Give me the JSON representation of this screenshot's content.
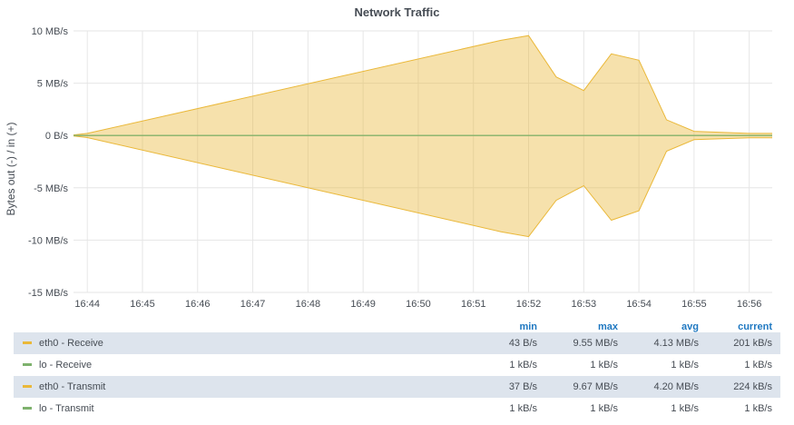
{
  "title": "Network Traffic",
  "chart_data": {
    "type": "area",
    "title": "Network Traffic",
    "ylabel": "Bytes out (-) / in (+)",
    "ylim": [
      -15,
      10
    ],
    "yticks": [
      10,
      5,
      0,
      -5,
      -10,
      -15
    ],
    "ytick_labels": [
      "10 MB/s",
      "5 MB/s",
      "0 B/s",
      "-5 MB/s",
      "-10 MB/s",
      "-15 MB/s"
    ],
    "x_ticks": [
      "16:44",
      "16:45",
      "16:46",
      "16:47",
      "16:48",
      "16:49",
      "16:50",
      "16:51",
      "16:52",
      "16:53",
      "16:54",
      "16:55",
      "16:56"
    ],
    "x": [
      "16:43:45",
      "16:44",
      "16:51:30",
      "16:52",
      "16:52:30",
      "16:53",
      "16:53:30",
      "16:54",
      "16:54:30",
      "16:55",
      "16:56",
      "16:56:25"
    ],
    "grid": true,
    "series": [
      {
        "name": "eth0 - Receive",
        "color": "#eab839",
        "values": [
          0.05,
          0.2,
          9.1,
          9.55,
          5.6,
          4.3,
          7.8,
          7.2,
          1.5,
          0.4,
          0.2,
          0.2
        ]
      },
      {
        "name": "lo - Receive",
        "color": "#7eb26d",
        "values": [
          0.001,
          0.001,
          0.001,
          0.001,
          0.001,
          0.001,
          0.001,
          0.001,
          0.001,
          0.001,
          0.001,
          0.001
        ]
      },
      {
        "name": "eth0 - Transmit",
        "color": "#eab839",
        "values": [
          -0.05,
          -0.2,
          -9.2,
          -9.67,
          -6.2,
          -4.8,
          -8.1,
          -7.2,
          -1.5,
          -0.4,
          -0.22,
          -0.22
        ]
      },
      {
        "name": "lo - Transmit",
        "color": "#7eb26d",
        "values": [
          -0.001,
          -0.001,
          -0.001,
          -0.001,
          -0.001,
          -0.001,
          -0.001,
          -0.001,
          -0.001,
          -0.001,
          -0.001,
          -0.001
        ]
      }
    ]
  },
  "legend": {
    "headers": {
      "min": "min",
      "max": "max",
      "avg": "avg",
      "current": "current"
    },
    "rows": [
      {
        "name": "eth0 - Receive",
        "color": "#eab839",
        "min": "43 B/s",
        "max": "9.55 MB/s",
        "avg": "4.13 MB/s",
        "current": "201 kB/s"
      },
      {
        "name": "lo - Receive",
        "color": "#7eb26d",
        "min": "1 kB/s",
        "max": "1 kB/s",
        "avg": "1 kB/s",
        "current": "1 kB/s"
      },
      {
        "name": "eth0 - Transmit",
        "color": "#eab839",
        "min": "37 B/s",
        "max": "9.67 MB/s",
        "avg": "4.20 MB/s",
        "current": "224 kB/s"
      },
      {
        "name": "lo - Transmit",
        "color": "#7eb26d",
        "min": "1 kB/s",
        "max": "1 kB/s",
        "avg": "1 kB/s",
        "current": "1 kB/s"
      }
    ]
  }
}
